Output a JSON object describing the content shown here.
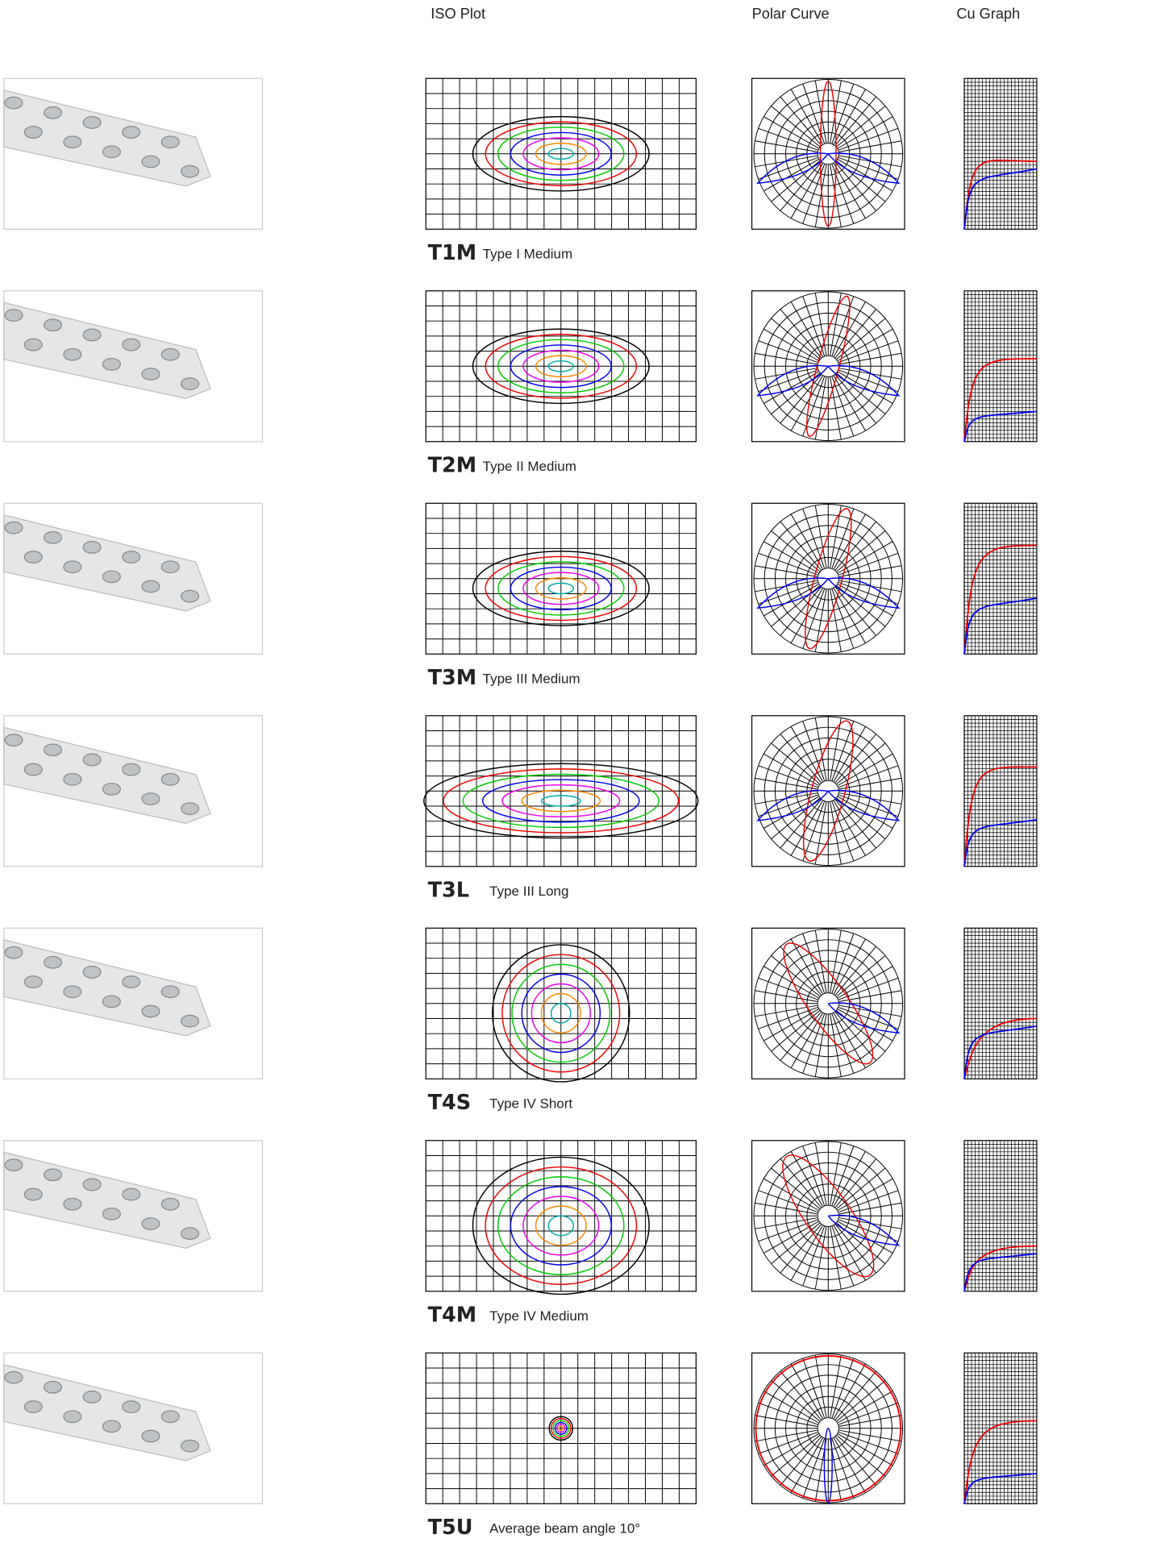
{
  "headers": {
    "iso": "ISO Plot",
    "polar": "Polar Curve",
    "cu": "Cu Graph"
  },
  "rows": [
    {
      "code": "T1M",
      "description": "Type I  Medium"
    },
    {
      "code": "T2M",
      "description": "Type II Medium"
    },
    {
      "code": "T3M",
      "description": "Type III Medium"
    },
    {
      "code": "T3L",
      "description": "Type III Long"
    },
    {
      "code": "T4S",
      "description": "Type IV  Short"
    },
    {
      "code": "T4M",
      "description": "Type IV  Medium"
    },
    {
      "code": "T5U",
      "description": "Average beam angle 10°"
    }
  ]
}
